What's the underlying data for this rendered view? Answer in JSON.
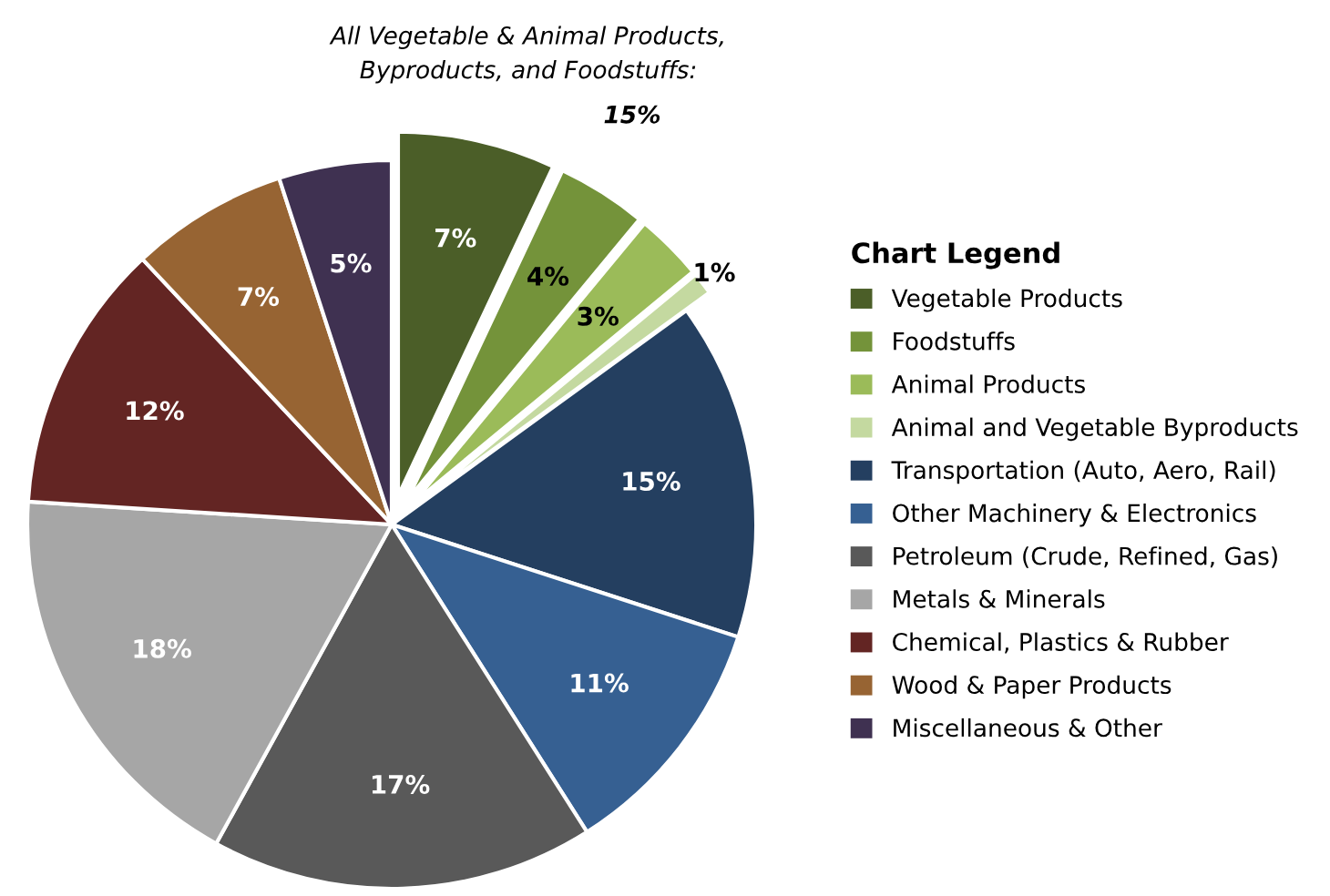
{
  "chart_data": {
    "type": "pie",
    "categories": [
      "Vegetable Products",
      "Foodstuffs",
      "Animal Products",
      "Animal and Vegetable Byproducts",
      "Transportation (Auto, Aero, Rail)",
      "Other Machinery & Electronics",
      "Petroleum (Crude, Refined, Gas)",
      "Metals & Minerals",
      "Chemical, Plastics & Rubber",
      "Wood & Paper Products",
      "Miscellaneous & Other"
    ],
    "values": [
      7,
      4,
      3,
      1,
      15,
      11,
      17,
      18,
      12,
      7,
      5
    ],
    "colors": [
      "#4b5e28",
      "#74933a",
      "#9bbb59",
      "#c4d9a0",
      "#243f60",
      "#366092",
      "#595959",
      "#a6a6a6",
      "#632523",
      "#976433",
      "#3f3151"
    ],
    "value_labels": [
      "7%",
      "4%",
      "3%",
      "1%",
      "15%",
      "11%",
      "17%",
      "18%",
      "12%",
      "7%",
      "5%"
    ],
    "legend": "right",
    "legend_title": "Chart Legend",
    "annotations": [
      "All Vegetable & Animal Products,\nByproducts, and Foodstuffs:",
      "15%"
    ]
  }
}
